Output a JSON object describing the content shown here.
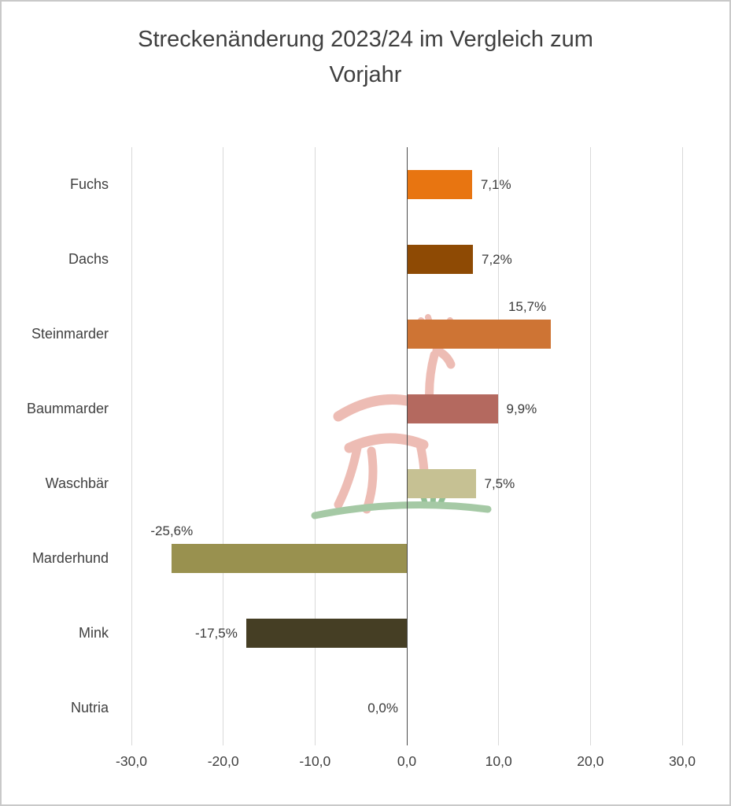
{
  "title": {
    "line1": "Streckenänderung 2023/24 im Vergleich zum",
    "line2": "Vorjahr"
  },
  "chart_data": {
    "type": "bar",
    "orientation": "horizontal",
    "title": "Streckenänderung 2023/24 im Vergleich zum Vorjahr",
    "categories": [
      "Fuchs",
      "Dachs",
      "Steinmarder",
      "Baummarder",
      "Waschbär",
      "Marderhund",
      "Mink",
      "Nutria"
    ],
    "values": [
      7.1,
      7.2,
      15.7,
      9.9,
      7.5,
      -25.6,
      -17.5,
      0.0
    ],
    "value_labels": [
      "7,1%",
      "7,2%",
      "15,7%",
      "9,9%",
      "7,5%",
      "-25,6%",
      "-17,5%",
      "0,0%"
    ],
    "bar_colors": [
      "#e87511",
      "#8e4a04",
      "#ce7434",
      "#b4695f",
      "#c6c193",
      "#99914f",
      "#453e24",
      "#999999"
    ],
    "label_positions": [
      "right",
      "right",
      "above-end",
      "right",
      "right",
      "above-start",
      "left",
      "zero"
    ],
    "xlim": [
      -30,
      30
    ],
    "x_ticks": [
      -30,
      -20,
      -10,
      0,
      10,
      20,
      30
    ],
    "x_tick_labels": [
      "-30,0",
      "-20,0",
      "-10,0",
      "0,0",
      "10,0",
      "20,0",
      "30,0"
    ],
    "xlabel": "",
    "ylabel": "",
    "grid": true,
    "legend": false
  },
  "colors": {
    "grid": "#d9d9d9",
    "zero_axis": "#4a4a4a",
    "text": "#404040",
    "frame": "#c9c9c9",
    "watermark_pink": "#ecb5ac",
    "watermark_green": "#9cc49c",
    "watermark_teal": "#86b98a"
  }
}
